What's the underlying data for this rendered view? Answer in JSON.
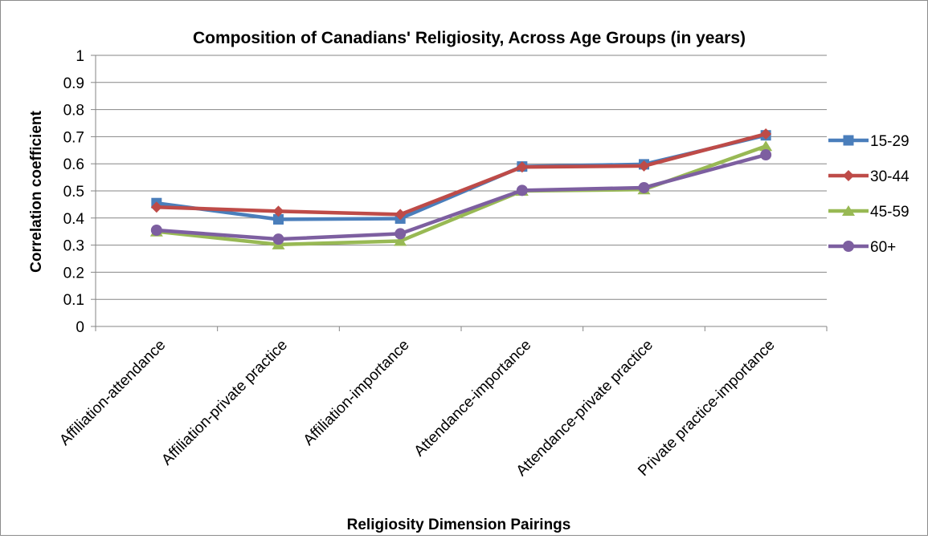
{
  "chart_data": {
    "type": "line",
    "title": "Composition of Canadians' Religiosity, Across Age Groups (in years)",
    "xlabel": "Religiosity Dimension Pairings",
    "ylabel": "Correlation coefficient",
    "ylim": [
      0,
      1
    ],
    "yticks": [
      0,
      0.1,
      0.2,
      0.3,
      0.4,
      0.5,
      0.6,
      0.7,
      0.8,
      0.9,
      1
    ],
    "ytick_labels": [
      "0",
      "0.1",
      "0.2",
      "0.3",
      "0.4",
      "0.5",
      "0.6",
      "0.7",
      "0.8",
      "0.9",
      "1"
    ],
    "grid": true,
    "legend_position": "right",
    "categories": [
      "Affiliation-attendance",
      "Affiliation-private practice",
      "Affiliation-importance",
      "Attendance-importance",
      "Attendance-private practice",
      "Private practice-importance"
    ],
    "series": [
      {
        "name": "15-29",
        "color": "#4a7ebb",
        "marker": "square",
        "values": [
          0.455,
          0.395,
          0.398,
          0.59,
          0.598,
          0.705
        ]
      },
      {
        "name": "30-44",
        "color": "#be4b48",
        "marker": "diamond",
        "values": [
          0.44,
          0.425,
          0.413,
          0.588,
          0.592,
          0.71
        ]
      },
      {
        "name": "45-59",
        "color": "#98b954",
        "marker": "triangle",
        "values": [
          0.35,
          0.302,
          0.315,
          0.5,
          0.505,
          0.665
        ]
      },
      {
        "name": "60+",
        "color": "#7d5fa0",
        "marker": "circle",
        "values": [
          0.355,
          0.322,
          0.342,
          0.502,
          0.512,
          0.633
        ]
      }
    ]
  }
}
